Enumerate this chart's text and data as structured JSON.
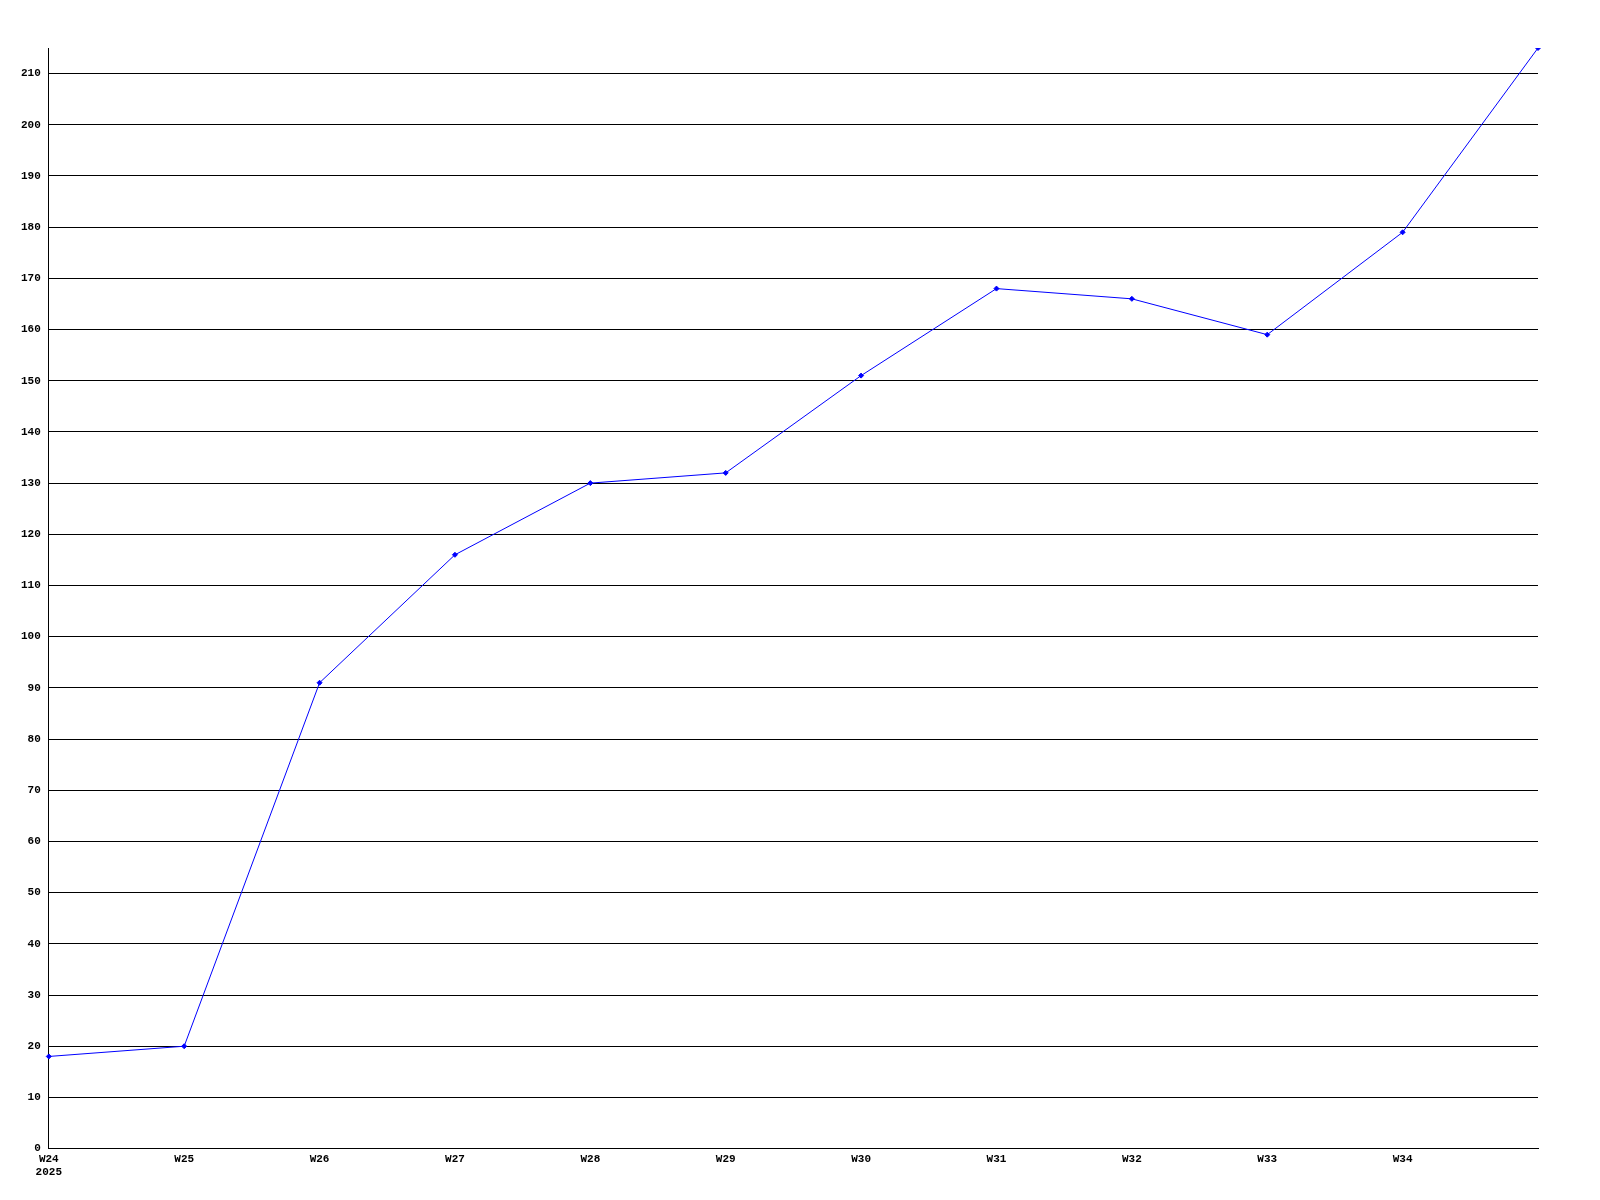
{
  "chart_data": {
    "type": "line",
    "categories": [
      "W24\n2025",
      "W25",
      "W26",
      "W27",
      "W28",
      "W29",
      "W30",
      "W31",
      "W32",
      "W33",
      "W34",
      null
    ],
    "series": [
      {
        "color": "#0000ff",
        "values": [
          18,
          20,
          91,
          116,
          130,
          132,
          151,
          168,
          166,
          159,
          179,
          215
        ]
      }
    ],
    "ylim": [
      0,
      215
    ],
    "yticks": [
      0,
      10,
      20,
      30,
      40,
      50,
      60,
      70,
      80,
      90,
      100,
      110,
      120,
      130,
      140,
      150,
      160,
      170,
      180,
      190,
      200,
      210
    ],
    "grid": "y",
    "legend": false,
    "marker": "diamond",
    "line_style": "solid"
  }
}
